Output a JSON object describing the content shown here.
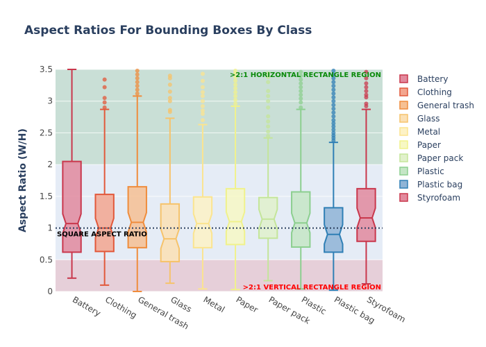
{
  "chart_data": {
    "type": "box",
    "title": "Aspect Ratios For Bounding Boxes By Class",
    "xlabel": "",
    "ylabel": "Aspect Ratio (W/H)",
    "ylim": [
      0,
      3.5
    ],
    "yticks": [
      "0",
      "0.5",
      "1",
      "1.5",
      "2",
      "2.5",
      "3",
      "3.5"
    ],
    "grid": true,
    "legend_position": "right",
    "regions": [
      {
        "label": ">2:1 HORIZONTAL RECTANGLE REGION",
        "from": 2,
        "to": 3.5,
        "color": "#c9dfd6",
        "label_color": "#0a8a0a"
      },
      {
        "label": ">2:1 VERTICAL RECTANGLE REGION",
        "from": 0,
        "to": 0.5,
        "color": "#e6cfd9",
        "label_color": "#ff0000"
      }
    ],
    "reference_line": {
      "value": 1,
      "label": "SQUARE ASPECT RATIO"
    },
    "series": [
      {
        "name": "Battery",
        "color": "#c9374c",
        "fill": "#e28a9d",
        "q1": 0.62,
        "median": 1.07,
        "q3": 2.05,
        "low": 0.21,
        "high": 3.5,
        "outliers": []
      },
      {
        "name": "Clothing",
        "color": "#e2583a",
        "fill": "#f3a68f",
        "q1": 0.63,
        "median": 1.0,
        "q3": 1.53,
        "low": 0.1,
        "high": 2.87,
        "outliers": [
          2.9,
          2.98,
          3.05,
          3.22,
          3.34
        ]
      },
      {
        "name": "General trash",
        "color": "#ef8c3c",
        "fill": "#f6c093",
        "q1": 0.69,
        "median": 1.09,
        "q3": 1.65,
        "low": 0.0,
        "high": 3.08,
        "outliers": [
          3.12,
          3.18,
          3.24,
          3.3,
          3.36,
          3.42,
          3.48
        ]
      },
      {
        "name": "Glass",
        "color": "#f6c36b",
        "fill": "#fbe0b4",
        "q1": 0.47,
        "median": 0.83,
        "q3": 1.38,
        "low": 0.13,
        "high": 2.73,
        "outliers": [
          2.83,
          2.86,
          3.0,
          3.05,
          3.15,
          3.26,
          3.36,
          3.4
        ]
      },
      {
        "name": "Metal",
        "color": "#fbe48f",
        "fill": "#fdf2c6",
        "q1": 0.69,
        "median": 1.07,
        "q3": 1.49,
        "low": 0.04,
        "high": 2.63,
        "outliers": [
          2.7,
          2.8,
          2.85,
          2.92,
          3.0,
          3.08,
          3.14,
          3.22,
          3.32,
          3.43
        ]
      },
      {
        "name": "Paper",
        "color": "#f0f28c",
        "fill": "#f7f8c4",
        "q1": 0.74,
        "median": 1.1,
        "q3": 1.62,
        "low": 0.03,
        "high": 2.92,
        "outliers": [
          2.96,
          3.02,
          3.08,
          3.14,
          3.2,
          3.26,
          3.32,
          3.38,
          3.44,
          3.48
        ]
      },
      {
        "name": "Paper pack",
        "color": "#c4e59a",
        "fill": "#e1f1cb",
        "q1": 0.84,
        "median": 1.14,
        "q3": 1.48,
        "low": 0.17,
        "high": 2.42,
        "outliers": [
          2.45,
          2.52,
          2.6,
          2.68,
          2.76,
          2.9,
          3.0,
          3.08,
          3.16,
          3.3,
          3.38,
          3.44
        ]
      },
      {
        "name": "Plastic",
        "color": "#8ccf8f",
        "fill": "#c5e6c6",
        "q1": 0.7,
        "median": 1.08,
        "q3": 1.57,
        "low": 0.04,
        "high": 2.87,
        "outliers": [
          2.9,
          2.98,
          3.04,
          3.1,
          3.16,
          3.22,
          3.28,
          3.34,
          3.4,
          3.46
        ]
      },
      {
        "name": "Plastic bag",
        "color": "#2f7fb5",
        "fill": "#8fb4d6",
        "q1": 0.62,
        "median": 0.9,
        "q3": 1.32,
        "low": 0.02,
        "high": 2.35,
        "outliers": [
          2.38,
          2.42,
          2.46,
          2.5,
          2.55,
          2.6,
          2.65,
          2.7,
          2.76,
          2.82,
          2.88,
          2.94,
          3.0,
          3.06,
          3.12,
          3.18,
          3.24,
          3.3,
          3.36,
          3.42,
          3.48
        ]
      },
      {
        "name": "Styrofoam",
        "color": "#c9374c",
        "fill": "#e28a9d",
        "q1": 0.79,
        "median": 1.16,
        "q3": 1.62,
        "low": 0.12,
        "high": 2.87,
        "outliers": [
          2.92,
          2.96,
          3.06,
          3.1,
          3.16,
          3.22,
          3.28,
          3.36,
          3.46
        ]
      }
    ]
  }
}
